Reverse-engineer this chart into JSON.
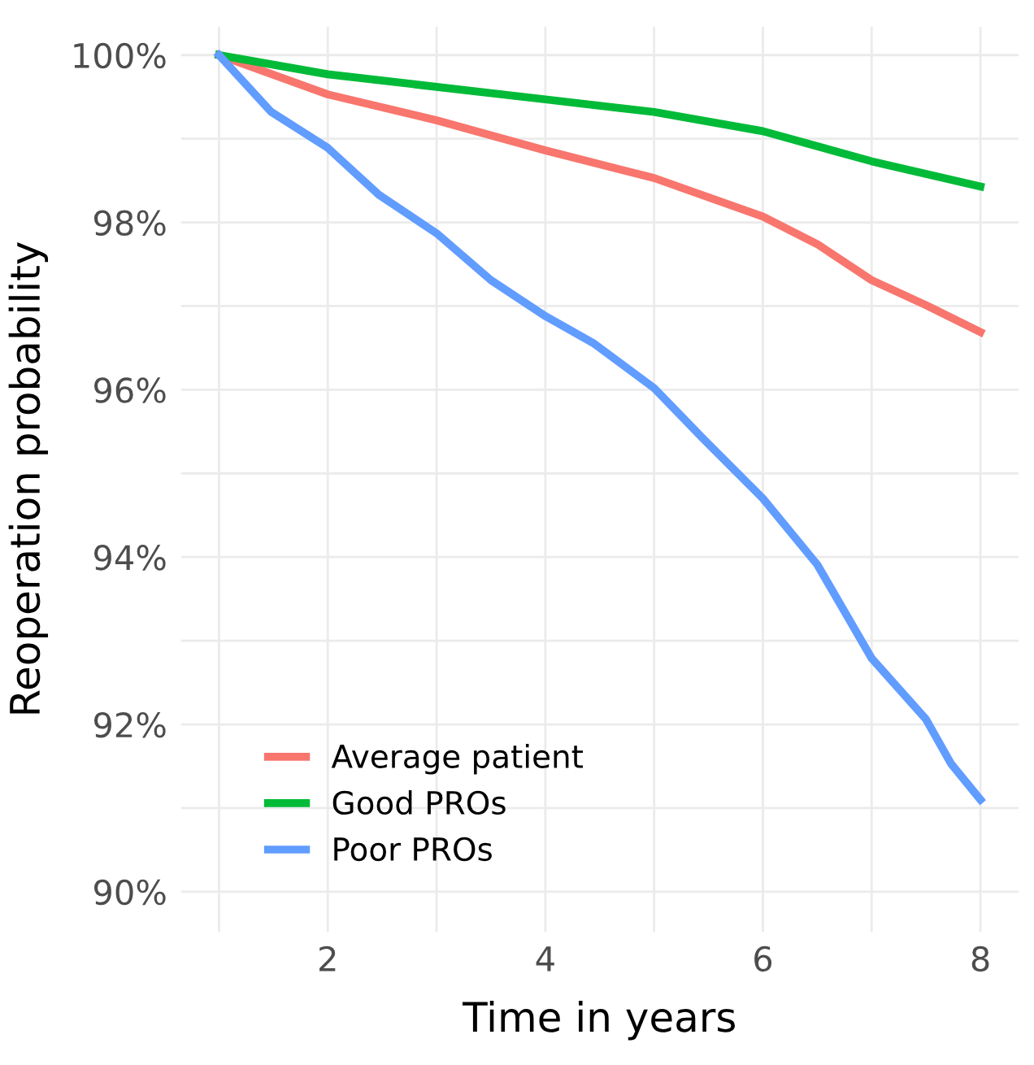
{
  "chart_data": {
    "type": "line",
    "xlabel": "Time in years",
    "ylabel": "Reoperation probability",
    "xlim": [
      0.65,
      8.35
    ],
    "ylim": [
      89.52,
      100.34
    ],
    "xticks": [
      {
        "value": 1,
        "label": null
      },
      2,
      {
        "value": 3,
        "label": null
      },
      4,
      {
        "value": 5,
        "label": null
      },
      6,
      {
        "value": 7,
        "label": null
      },
      8
    ],
    "yticks": [
      {
        "value": 90,
        "label": "90%"
      },
      {
        "value": 91,
        "label": null
      },
      {
        "value": 92,
        "label": "92%"
      },
      {
        "value": 93,
        "label": null
      },
      {
        "value": 94,
        "label": "94%"
      },
      {
        "value": 95,
        "label": null
      },
      {
        "value": 96,
        "label": "96%"
      },
      {
        "value": 97,
        "label": null
      },
      {
        "value": 98,
        "label": "98%"
      },
      {
        "value": 99,
        "label": null
      },
      {
        "value": 100,
        "label": "100%"
      }
    ],
    "grid": true,
    "legend": "bottom left",
    "marker": "none",
    "line_style": "solid",
    "series": [
      {
        "name": "Average patient",
        "color": "#f8766d",
        "x": [
          1,
          2,
          3,
          4,
          5,
          6,
          6.5,
          7,
          7.5,
          8
        ],
        "values": [
          100,
          99.53,
          99.22,
          98.86,
          98.53,
          98.07,
          97.74,
          97.31,
          97.01,
          96.69
        ]
      },
      {
        "name": "Good PROs",
        "color": "#00ba38",
        "x": [
          1,
          2,
          3,
          4,
          5,
          6,
          7,
          8
        ],
        "values": [
          100,
          99.77,
          99.62,
          99.47,
          99.32,
          99.09,
          98.73,
          98.43
        ]
      },
      {
        "name": "Poor PROs",
        "color": "#619cff",
        "x": [
          1,
          1.48,
          2,
          2.47,
          3,
          3.5,
          4,
          4.45,
          5,
          5.44,
          6,
          6.5,
          7,
          7.5,
          7.73,
          8
        ],
        "values": [
          100,
          99.32,
          98.89,
          98.33,
          97.87,
          97.31,
          96.88,
          96.55,
          96.02,
          95.43,
          94.7,
          93.91,
          92.79,
          92.06,
          91.53,
          91.1
        ]
      }
    ]
  }
}
